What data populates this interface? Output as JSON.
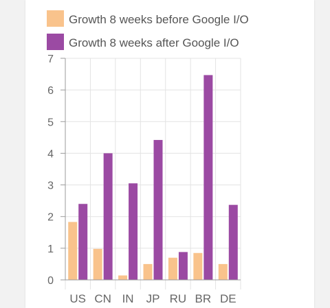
{
  "chart_data": {
    "type": "bar",
    "categories": [
      "US",
      "CN",
      "IN",
      "JP",
      "RU",
      "BR",
      "DE"
    ],
    "series": [
      {
        "name": "Growth 8 weeks before Google I/O",
        "color": "#f9c38c",
        "values": [
          1.83,
          0.98,
          0.14,
          0.5,
          0.7,
          0.85,
          0.5
        ]
      },
      {
        "name": "Growth 8 weeks after Google I/O",
        "color": "#9b4aa3",
        "values": [
          2.4,
          4.0,
          3.05,
          4.42,
          0.88,
          6.47,
          2.37
        ]
      }
    ],
    "ylim": [
      0,
      7
    ],
    "yticks": [
      0,
      1,
      2,
      3,
      4,
      5,
      6,
      7
    ],
    "grid": true,
    "legend": "top"
  }
}
